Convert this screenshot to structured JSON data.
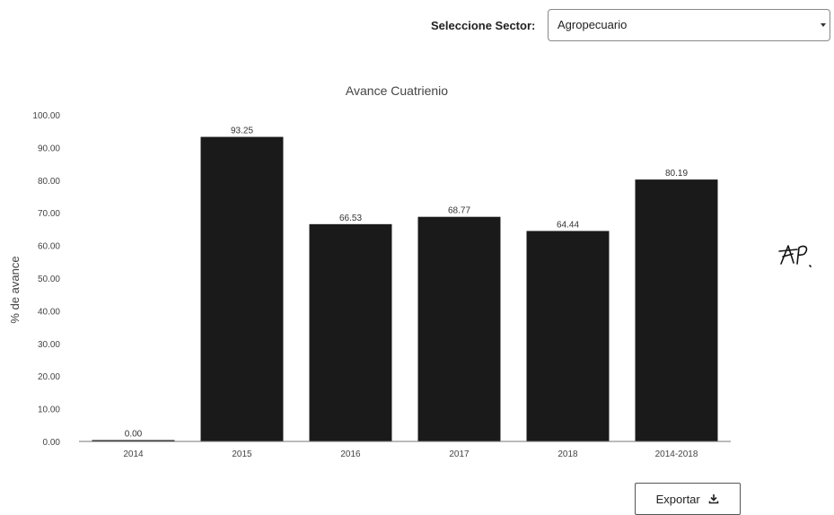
{
  "sector_selector": {
    "label": "Seleccione Sector:",
    "selected": "Agropecuario"
  },
  "chart_data": {
    "type": "bar",
    "title": "Avance Cuatrienio",
    "xlabel": "",
    "ylabel": "% de avance",
    "categories": [
      "2014",
      "2015",
      "2016",
      "2017",
      "2018",
      "2014-2018"
    ],
    "values": [
      0.0,
      93.25,
      66.53,
      68.77,
      64.44,
      80.19
    ],
    "value_labels": [
      "0.00",
      "93.25",
      "66.53",
      "68.77",
      "64.44",
      "80.19"
    ],
    "ylim": [
      0,
      100
    ],
    "yticks": [
      "0.00",
      "10.00",
      "20.00",
      "30.00",
      "40.00",
      "50.00",
      "60.00",
      "70.00",
      "80.00",
      "90.00",
      "100.00"
    ],
    "grid": false,
    "bar_color": "#1a1a1a"
  },
  "export_button": {
    "label": "Exportar",
    "icon": "download-icon"
  }
}
